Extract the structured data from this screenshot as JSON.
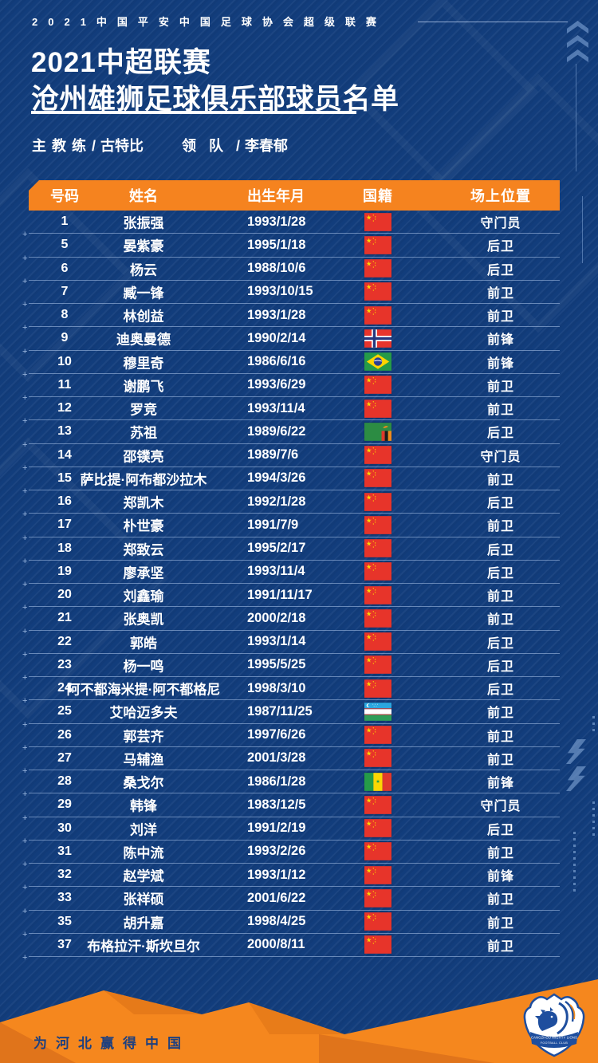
{
  "banner": {
    "league_line": "2021中国平安中国足球协会超级联赛"
  },
  "header": {
    "title_line1": "2021中超联赛",
    "title_line2": "沧州雄狮足球俱乐部球员名单"
  },
  "staff": {
    "head_coach_label": "主教练",
    "separator": "/",
    "head_coach_name": "古特比",
    "manager_label": "领队",
    "manager_name": "李春郁"
  },
  "table": {
    "columns": [
      "号码",
      "姓名",
      "出生年月",
      "国籍",
      "场上位置"
    ],
    "rows": [
      {
        "no": "1",
        "name": "张振强",
        "dob": "1993/1/28",
        "flag": "flag-china",
        "pos": "守门员"
      },
      {
        "no": "5",
        "name": "晏紫豪",
        "dob": "1995/1/18",
        "flag": "flag-china",
        "pos": "后卫"
      },
      {
        "no": "6",
        "name": "杨云",
        "dob": "1988/10/6",
        "flag": "flag-china",
        "pos": "后卫"
      },
      {
        "no": "7",
        "name": "臧一锋",
        "dob": "1993/10/15",
        "flag": "flag-china",
        "pos": "前卫"
      },
      {
        "no": "8",
        "name": "林创益",
        "dob": "1993/1/28",
        "flag": "flag-china",
        "pos": "前卫"
      },
      {
        "no": "9",
        "name": "迪奥曼德",
        "dob": "1990/2/14",
        "flag": "flag-norway",
        "pos": "前锋"
      },
      {
        "no": "10",
        "name": "穆里奇",
        "dob": "1986/6/16",
        "flag": "flag-brazil",
        "pos": "前锋"
      },
      {
        "no": "11",
        "name": "谢鹏飞",
        "dob": "1993/6/29",
        "flag": "flag-china",
        "pos": "前卫"
      },
      {
        "no": "12",
        "name": "罗竞",
        "dob": "1993/11/4",
        "flag": "flag-china",
        "pos": "前卫"
      },
      {
        "no": "13",
        "name": "苏祖",
        "dob": "1989/6/22",
        "flag": "flag-zambia",
        "pos": "后卫"
      },
      {
        "no": "14",
        "name": "邵镤亮",
        "dob": "1989/7/6",
        "flag": "flag-china",
        "pos": "守门员"
      },
      {
        "no": "15",
        "name": "萨比提·阿布都沙拉木",
        "dob": "1994/3/26",
        "flag": "flag-china",
        "pos": "前卫"
      },
      {
        "no": "16",
        "name": "郑凯木",
        "dob": "1992/1/28",
        "flag": "flag-china",
        "pos": "后卫"
      },
      {
        "no": "17",
        "name": "朴世豪",
        "dob": "1991/7/9",
        "flag": "flag-china",
        "pos": "前卫"
      },
      {
        "no": "18",
        "name": "郑致云",
        "dob": "1995/2/17",
        "flag": "flag-china",
        "pos": "后卫"
      },
      {
        "no": "19",
        "name": "廖承坚",
        "dob": "1993/11/4",
        "flag": "flag-china",
        "pos": "后卫"
      },
      {
        "no": "20",
        "name": "刘鑫瑜",
        "dob": "1991/11/17",
        "flag": "flag-china",
        "pos": "前卫"
      },
      {
        "no": "21",
        "name": "张奥凯",
        "dob": "2000/2/18",
        "flag": "flag-china",
        "pos": "前卫"
      },
      {
        "no": "22",
        "name": "郭皓",
        "dob": "1993/1/14",
        "flag": "flag-china",
        "pos": "后卫"
      },
      {
        "no": "23",
        "name": "杨一鸣",
        "dob": "1995/5/25",
        "flag": "flag-china",
        "pos": "后卫"
      },
      {
        "no": "24",
        "name": "阿不都海米提·阿不都格尼",
        "dob": "1998/3/10",
        "flag": "flag-china",
        "pos": "后卫"
      },
      {
        "no": "25",
        "name": "艾哈迈多夫",
        "dob": "1987/11/25",
        "flag": "flag-uzbekistan",
        "pos": "前卫"
      },
      {
        "no": "26",
        "name": "郭芸齐",
        "dob": "1997/6/26",
        "flag": "flag-china",
        "pos": "前卫"
      },
      {
        "no": "27",
        "name": "马辅渔",
        "dob": "2001/3/28",
        "flag": "flag-china",
        "pos": "前卫"
      },
      {
        "no": "28",
        "name": "桑戈尔",
        "dob": "1986/1/28",
        "flag": "flag-senegal",
        "pos": "前锋"
      },
      {
        "no": "29",
        "name": "韩锋",
        "dob": "1983/12/5",
        "flag": "flag-china",
        "pos": "守门员"
      },
      {
        "no": "30",
        "name": "刘洋",
        "dob": "1991/2/19",
        "flag": "flag-china",
        "pos": "后卫"
      },
      {
        "no": "31",
        "name": "陈中流",
        "dob": "1993/2/26",
        "flag": "flag-china",
        "pos": "前卫"
      },
      {
        "no": "32",
        "name": "赵学斌",
        "dob": "1993/1/12",
        "flag": "flag-china",
        "pos": "前锋"
      },
      {
        "no": "33",
        "name": "张祥硕",
        "dob": "2001/6/22",
        "flag": "flag-china",
        "pos": "前卫"
      },
      {
        "no": "35",
        "name": "胡升嘉",
        "dob": "1998/4/25",
        "flag": "flag-china",
        "pos": "前卫"
      },
      {
        "no": "37",
        "name": "布格拉汗·斯坎旦尔",
        "dob": "2000/8/11",
        "flag": "flag-china",
        "pos": "前卫"
      }
    ]
  },
  "footer": {
    "slogan": "为河北赢得中国",
    "club_name_en": "CANGZHOU MIGHTY LIONS",
    "club_type_en": "FOOTBALL CLUB"
  },
  "colors": {
    "background_blue": "#123d7c",
    "accent_orange": "#f5831f",
    "footer_orange_dark": "#e0741b",
    "row_divider": "#adc7eb",
    "slogan_blue": "#1d4080",
    "text_white": "#ffffff"
  },
  "icons": {
    "top_right": "up-chevrons-icon",
    "mid_right": "lightning-bolts-icon",
    "badge": "club-badge-lion-icon"
  }
}
